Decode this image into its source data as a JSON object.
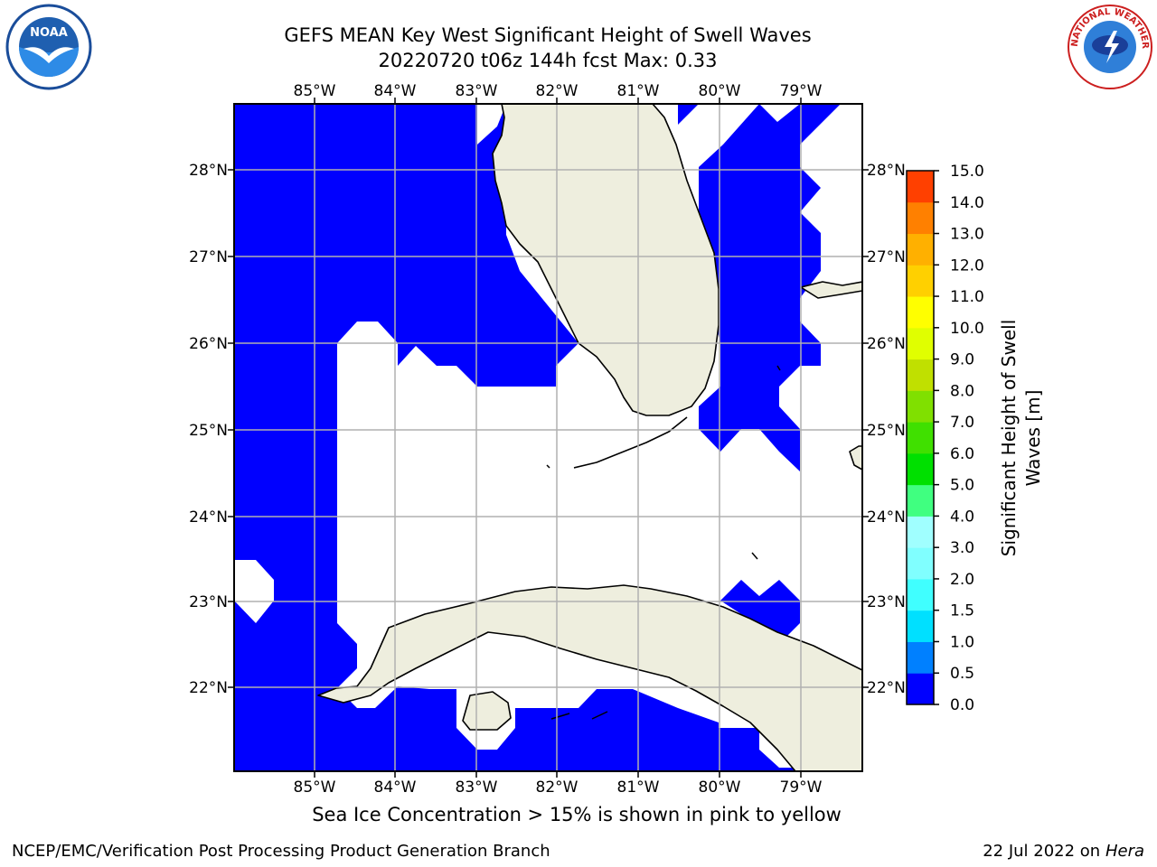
{
  "title": {
    "line1": "GEFS MEAN Key West Significant Height of Swell Waves",
    "line2": "20220720 t06z 144h fcst   Max: 0.33"
  },
  "map": {
    "lon_labels": [
      "85°W",
      "84°W",
      "83°W",
      "82°W",
      "81°W",
      "80°W",
      "79°W"
    ],
    "lat_labels": [
      "28°N",
      "27°N",
      "26°N",
      "25°N",
      "24°N",
      "23°N",
      "22°N"
    ],
    "colors": {
      "swell_0_0p5": "#0000ff",
      "land": "#eeeede",
      "no_data": "#ffffff",
      "grid": "#b0b0b0"
    }
  },
  "colorbar": {
    "label_line1": "Significant Height of Swell",
    "label_line2": "Waves [m]",
    "ticks": [
      "0.0",
      "0.5",
      "1.0",
      "1.5",
      "2.0",
      "3.0",
      "4.0",
      "5.0",
      "6.0",
      "7.0",
      "8.0",
      "9.0",
      "10.0",
      "11.0",
      "12.0",
      "13.0",
      "14.0",
      "15.0"
    ],
    "colors": [
      "#0000ff",
      "#0080ff",
      "#00e0ff",
      "#40ffff",
      "#80ffff",
      "#a0ffff",
      "#40ff80",
      "#00e000",
      "#40e000",
      "#80e000",
      "#c0e000",
      "#e0ff00",
      "#ffff00",
      "#ffd000",
      "#ffb000",
      "#ff8000",
      "#ff4000",
      "#ff0000"
    ]
  },
  "note": "Sea Ice Concentration > 15% is shown in pink to yellow",
  "footer": {
    "left": "NCEP/EMC/Verification Post Processing Product Generation Branch",
    "right_prefix": "22 Jul 2022 on ",
    "right_host": "Hera"
  },
  "logos": {
    "left": "NOAA",
    "right": "NATIONAL WEATHER SERVICE"
  }
}
